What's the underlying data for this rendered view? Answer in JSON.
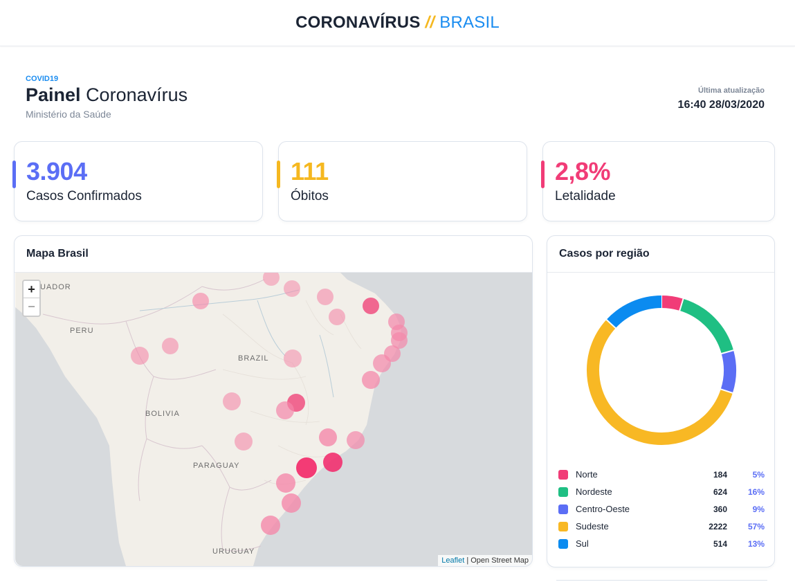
{
  "brand": {
    "part1": "CORONAVÍRUS",
    "sep": "//",
    "part2": "BRASIL"
  },
  "header": {
    "tag": "COVID19",
    "title_bold": "Painel",
    "title_rest": "Coronavírus",
    "subtitle": "Ministério da Saúde",
    "update_label": "Última atualização",
    "update_value": "16:40 28/03/2020"
  },
  "stats": [
    {
      "value": "3.904",
      "label": "Casos Confirmados",
      "color": "#5b6ef5"
    },
    {
      "value": "111",
      "label": "Óbitos",
      "color": "#f5b820"
    },
    {
      "value": "2,8%",
      "label": "Letalidade",
      "color": "#f13c77"
    }
  ],
  "map_panel": {
    "title": "Mapa Brasil",
    "zoom_in": "+",
    "zoom_out": "−",
    "attribution_link": "Leaflet",
    "attribution_text": "| Open Street Map",
    "countries": [
      "UADOR",
      "PERU",
      "BRAZIL",
      "BOLIVIA",
      "PARAGUAY",
      "URUGUAY"
    ]
  },
  "region_panel": {
    "title": "Casos por região",
    "regions": [
      {
        "name": "Norte",
        "count": "184",
        "percent": "5%",
        "value": 184,
        "color": "#f13c77"
      },
      {
        "name": "Nordeste",
        "count": "624",
        "percent": "16%",
        "value": 624,
        "color": "#1fbf83"
      },
      {
        "name": "Centro-Oeste",
        "count": "360",
        "percent": "9%",
        "value": 360,
        "color": "#5b6ef5"
      },
      {
        "name": "Sudeste",
        "count": "2222",
        "percent": "57%",
        "value": 2222,
        "color": "#f8b824"
      },
      {
        "name": "Sul",
        "count": "514",
        "percent": "13%",
        "value": 514,
        "color": "#0b8bf0"
      }
    ]
  },
  "chart_data": {
    "type": "pie",
    "categories": [
      "Norte",
      "Nordeste",
      "Centro-Oeste",
      "Sudeste",
      "Sul"
    ],
    "values": [
      184,
      624,
      360,
      2222,
      514
    ],
    "title": "Casos por região",
    "legend": "bottom"
  }
}
